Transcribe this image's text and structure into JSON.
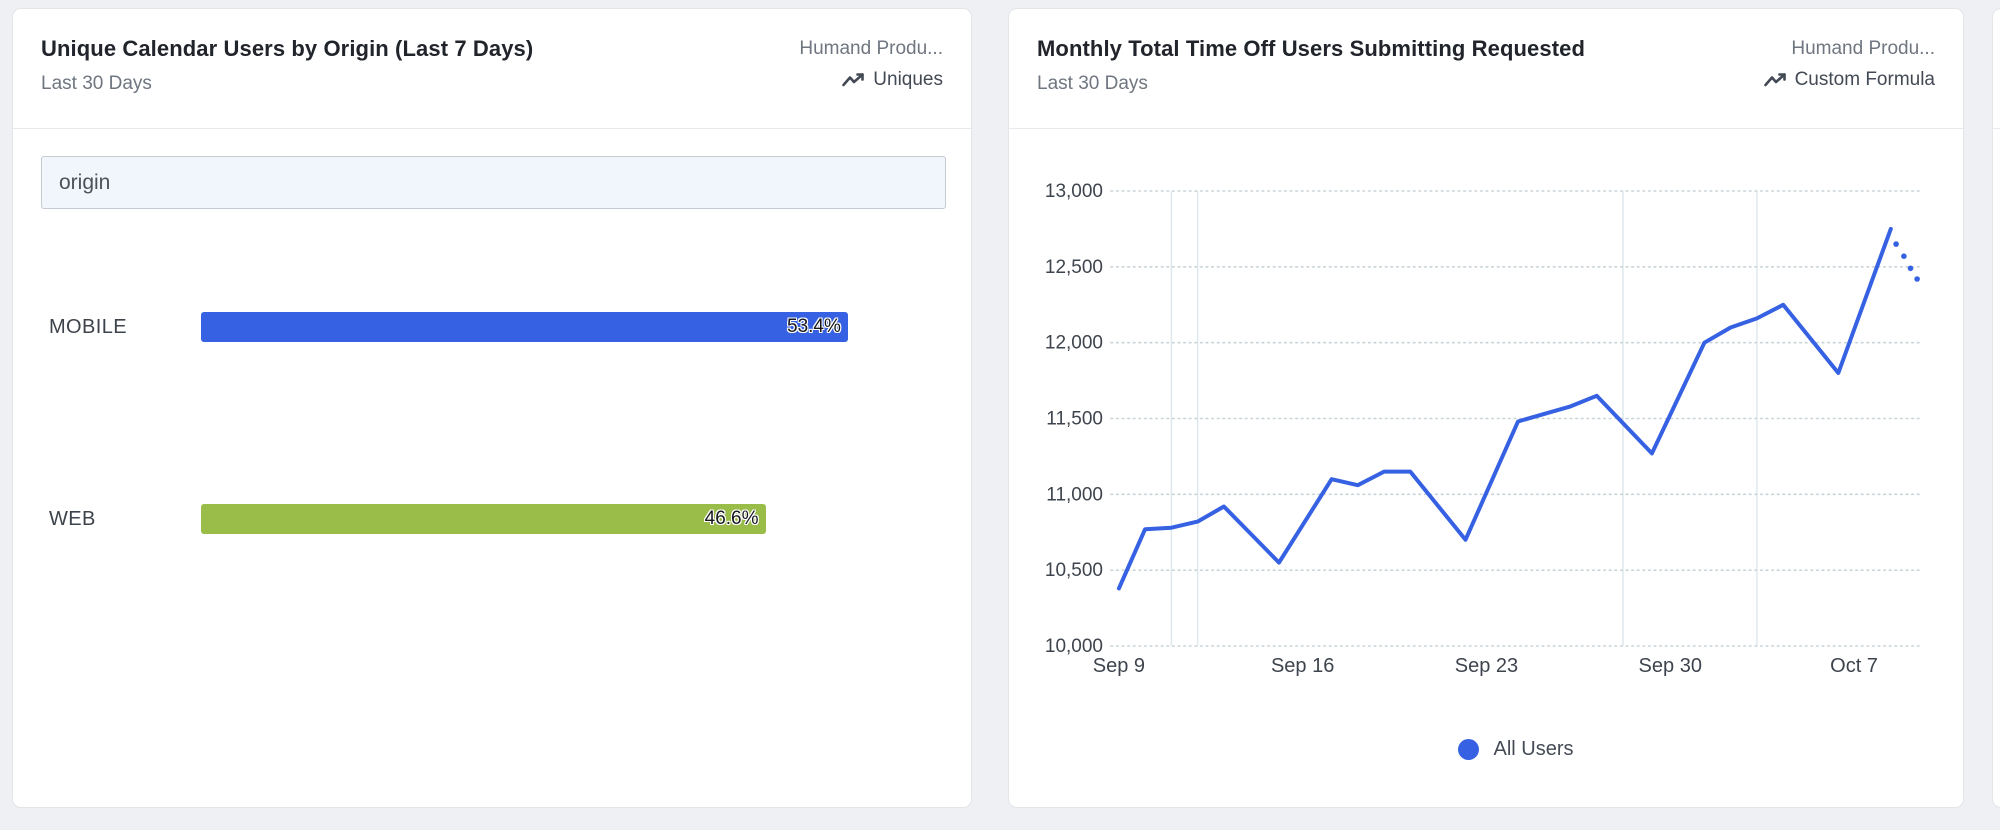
{
  "page": {
    "background": "#eef0f3"
  },
  "cards": [
    {
      "title": "Unique Calendar Users by Origin (Last 7 Days)",
      "subtitle": "Last 30 Days",
      "source": "Humand Produ...",
      "metric_type": "Uniques",
      "filter_input": {
        "value": "origin"
      }
    },
    {
      "title": "Monthly Total Time Off Users Submitting Requested",
      "subtitle": "Last 30 Days",
      "source": "Humand Produ...",
      "metric_type": "Custom Formula",
      "legend": [
        {
          "label": "All Users",
          "color": "#3561e2"
        }
      ]
    }
  ],
  "chart_data": [
    {
      "type": "bar",
      "title": "Unique Calendar Users by Origin (Last 7 Days)",
      "orientation": "horizontal",
      "categories": [
        "MOBILE",
        "WEB"
      ],
      "values": [
        53.4,
        46.6
      ],
      "value_labels": [
        "53.4%",
        "46.6%"
      ],
      "unit": "%",
      "colors": [
        "#3561e2",
        "#9abd4a"
      ],
      "xlim": [
        0,
        61.5
      ],
      "grid": false
    },
    {
      "type": "line",
      "title": "Monthly Total Time Off Users Submitting Requested",
      "ylim": [
        10000,
        13000
      ],
      "y_ticks": [
        10000,
        10500,
        11000,
        11500,
        12000,
        12500,
        13000
      ],
      "x_ticks": [
        {
          "day": 0,
          "label": "Sep 9"
        },
        {
          "day": 7,
          "label": "Sep 16"
        },
        {
          "day": 14,
          "label": "Sep 23"
        },
        {
          "day": 21,
          "label": "Sep 30"
        },
        {
          "day": 28,
          "label": "Oct 7"
        }
      ],
      "x_domain_days": [
        -0.3,
        30.55
      ],
      "grid": "dotted-horizontal",
      "grid_color": "#c8d3d8",
      "vline_days": [
        2,
        3,
        19.2,
        24.3
      ],
      "vline_color": "#dfe9ed",
      "legend_position": "bottom",
      "series": [
        {
          "name": "All Users",
          "color": "#3561e2",
          "points_day_value": [
            [
              0,
              10380
            ],
            [
              1,
              10770
            ],
            [
              2,
              10780
            ],
            [
              3,
              10820
            ],
            [
              4,
              10920
            ],
            [
              6.1,
              10550
            ],
            [
              8.1,
              11100
            ],
            [
              9.1,
              11060
            ],
            [
              10.1,
              11150
            ],
            [
              11.1,
              11150
            ],
            [
              13.2,
              10700
            ],
            [
              15.2,
              11480
            ],
            [
              16.2,
              11530
            ],
            [
              17.2,
              11580
            ],
            [
              18.2,
              11650
            ],
            [
              20.3,
              11270
            ],
            [
              22.3,
              12000
            ],
            [
              23.3,
              12100
            ],
            [
              24.3,
              12160
            ],
            [
              25.3,
              12250
            ],
            [
              27.4,
              11800
            ],
            [
              29.4,
              12750
            ]
          ],
          "projected_points_day_value": [
            [
              29.6,
              12650
            ],
            [
              29.9,
              12570
            ],
            [
              30.15,
              12490
            ],
            [
              30.4,
              12420
            ]
          ]
        }
      ]
    }
  ]
}
